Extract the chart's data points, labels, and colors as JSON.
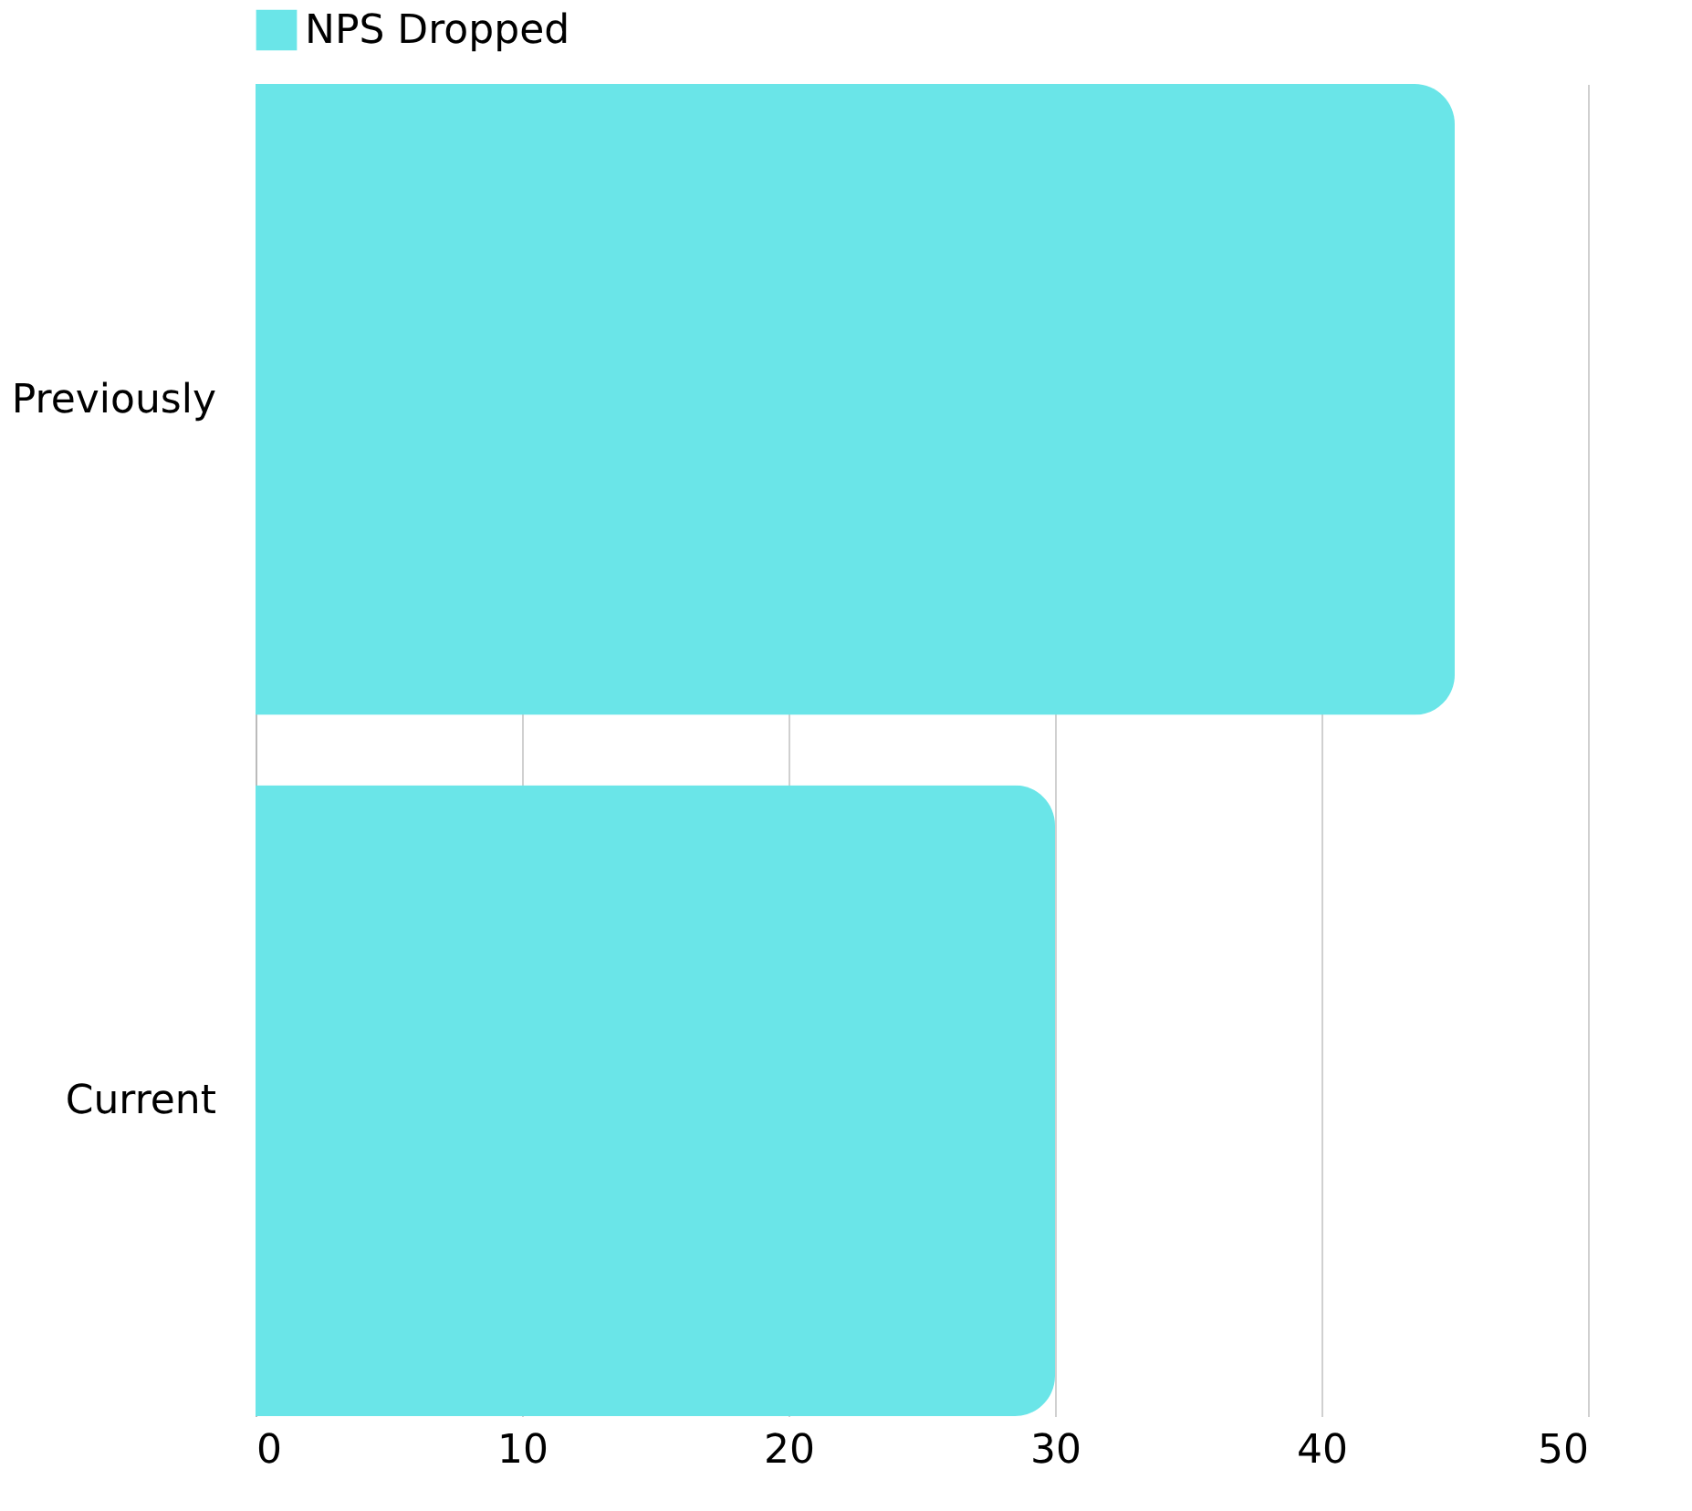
{
  "chart_data": {
    "type": "bar",
    "orientation": "horizontal",
    "categories": [
      "Previously",
      "Current"
    ],
    "series": [
      {
        "name": "NPS Dropped",
        "color": "#6ae5e8",
        "values": [
          45,
          30
        ]
      }
    ],
    "xlim": [
      0,
      50
    ],
    "xticks": [
      0,
      10,
      20,
      30,
      40,
      50
    ],
    "grid": "x",
    "legend": "top"
  }
}
